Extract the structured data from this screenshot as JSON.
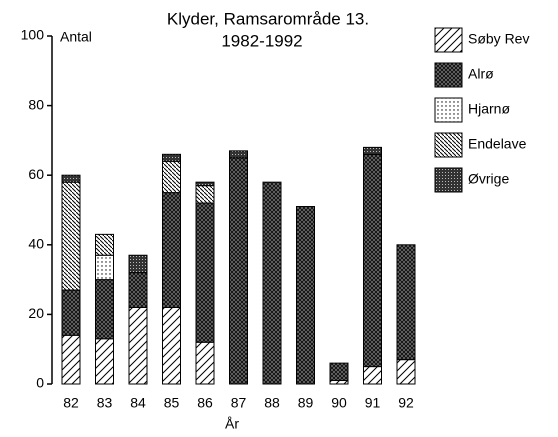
{
  "chart_data": {
    "type": "stacked_bar",
    "title": "Klyder, Ramsarområde 13.",
    "subtitle": "1982-1992",
    "y_label": "Antal",
    "x_label": "År",
    "categories": [
      "82",
      "83",
      "84",
      "85",
      "86",
      "87",
      "88",
      "89",
      "90",
      "91",
      "92"
    ],
    "series": [
      {
        "name": "Søby Rev",
        "color": "#000000",
        "pattern": "diagonal",
        "values": [
          14,
          13,
          22,
          22,
          12,
          0,
          0,
          0,
          1,
          5,
          7
        ]
      },
      {
        "name": "Alrø",
        "color": "#000000",
        "pattern": "crosshatch",
        "values": [
          13,
          17,
          10,
          33,
          40,
          65,
          58,
          51,
          5,
          61,
          33
        ]
      },
      {
        "name": "Hjarnø",
        "color": "#000000",
        "pattern": "dots",
        "values": [
          0,
          7,
          0,
          0,
          0,
          0,
          0,
          0,
          0,
          0,
          0
        ]
      },
      {
        "name": "Endelave",
        "color": "#000000",
        "pattern": "backdiagonal",
        "values": [
          31,
          6,
          0,
          9,
          5,
          0,
          0,
          0,
          0,
          0,
          0
        ]
      },
      {
        "name": "Øvrige",
        "color": "#000000",
        "pattern": "dense",
        "values": [
          2,
          0,
          5,
          2,
          1,
          2,
          0,
          0,
          0,
          2,
          0
        ]
      }
    ],
    "ylim": [
      0,
      100
    ],
    "yticks": [
      0,
      20,
      40,
      60,
      80,
      100
    ]
  }
}
